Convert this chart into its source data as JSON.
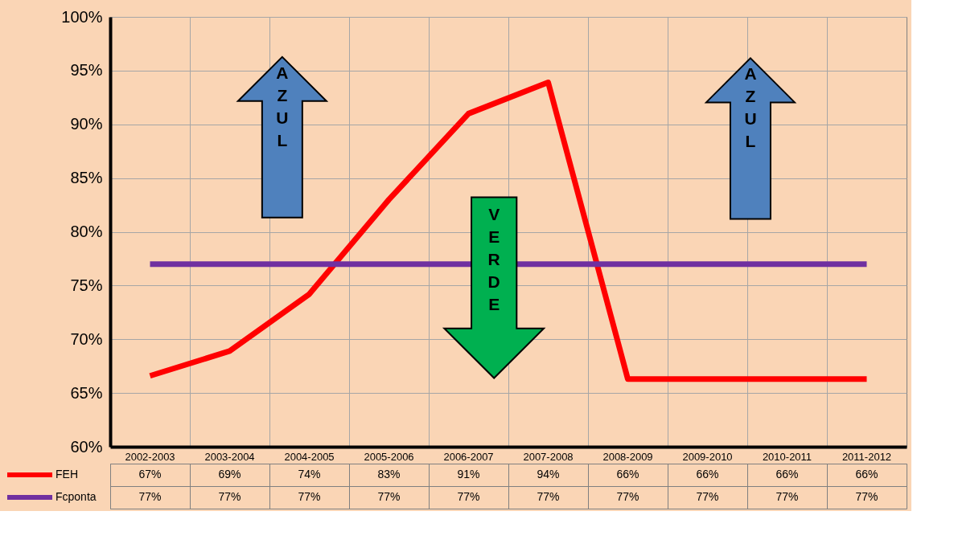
{
  "chart_data": {
    "type": "line",
    "categories": [
      "2002-2003",
      "2003-2004",
      "2004-2005",
      "2005-2006",
      "2006-2007",
      "2007-2008",
      "2008-2009",
      "2009-2010",
      "2010-2011",
      "2011-2012"
    ],
    "series": [
      {
        "name": "FEH",
        "color": "#ff0000",
        "values": [
          66.6,
          68.9,
          74.2,
          83.0,
          91.0,
          93.9,
          66.3,
          66.3,
          66.3,
          66.3
        ],
        "value_labels": [
          "67%",
          "69%",
          "74%",
          "83%",
          "91%",
          "94%",
          "66%",
          "66%",
          "66%",
          "66%"
        ]
      },
      {
        "name": "Fcponta",
        "color": "#7030a0",
        "values": [
          77,
          77,
          77,
          77,
          77,
          77,
          77,
          77,
          77,
          77
        ],
        "value_labels": [
          "77%",
          "77%",
          "77%",
          "77%",
          "77%",
          "77%",
          "77%",
          "77%",
          "77%",
          "77%"
        ]
      }
    ],
    "ylim": [
      60,
      100
    ],
    "yticks": [
      {
        "value": 60,
        "label": "60%"
      },
      {
        "value": 65,
        "label": "65%"
      },
      {
        "value": 70,
        "label": "70%"
      },
      {
        "value": 75,
        "label": "75%"
      },
      {
        "value": 80,
        "label": "80%"
      },
      {
        "value": 85,
        "label": "85%"
      },
      {
        "value": 90,
        "label": "90%"
      },
      {
        "value": 95,
        "label": "95%"
      },
      {
        "value": 100,
        "label": "100%"
      }
    ],
    "grid": true,
    "legend": "bottom",
    "marker": "none",
    "line_style": "solid",
    "annotations": [
      "AZUL",
      "VERDE",
      "AZUL"
    ]
  }
}
